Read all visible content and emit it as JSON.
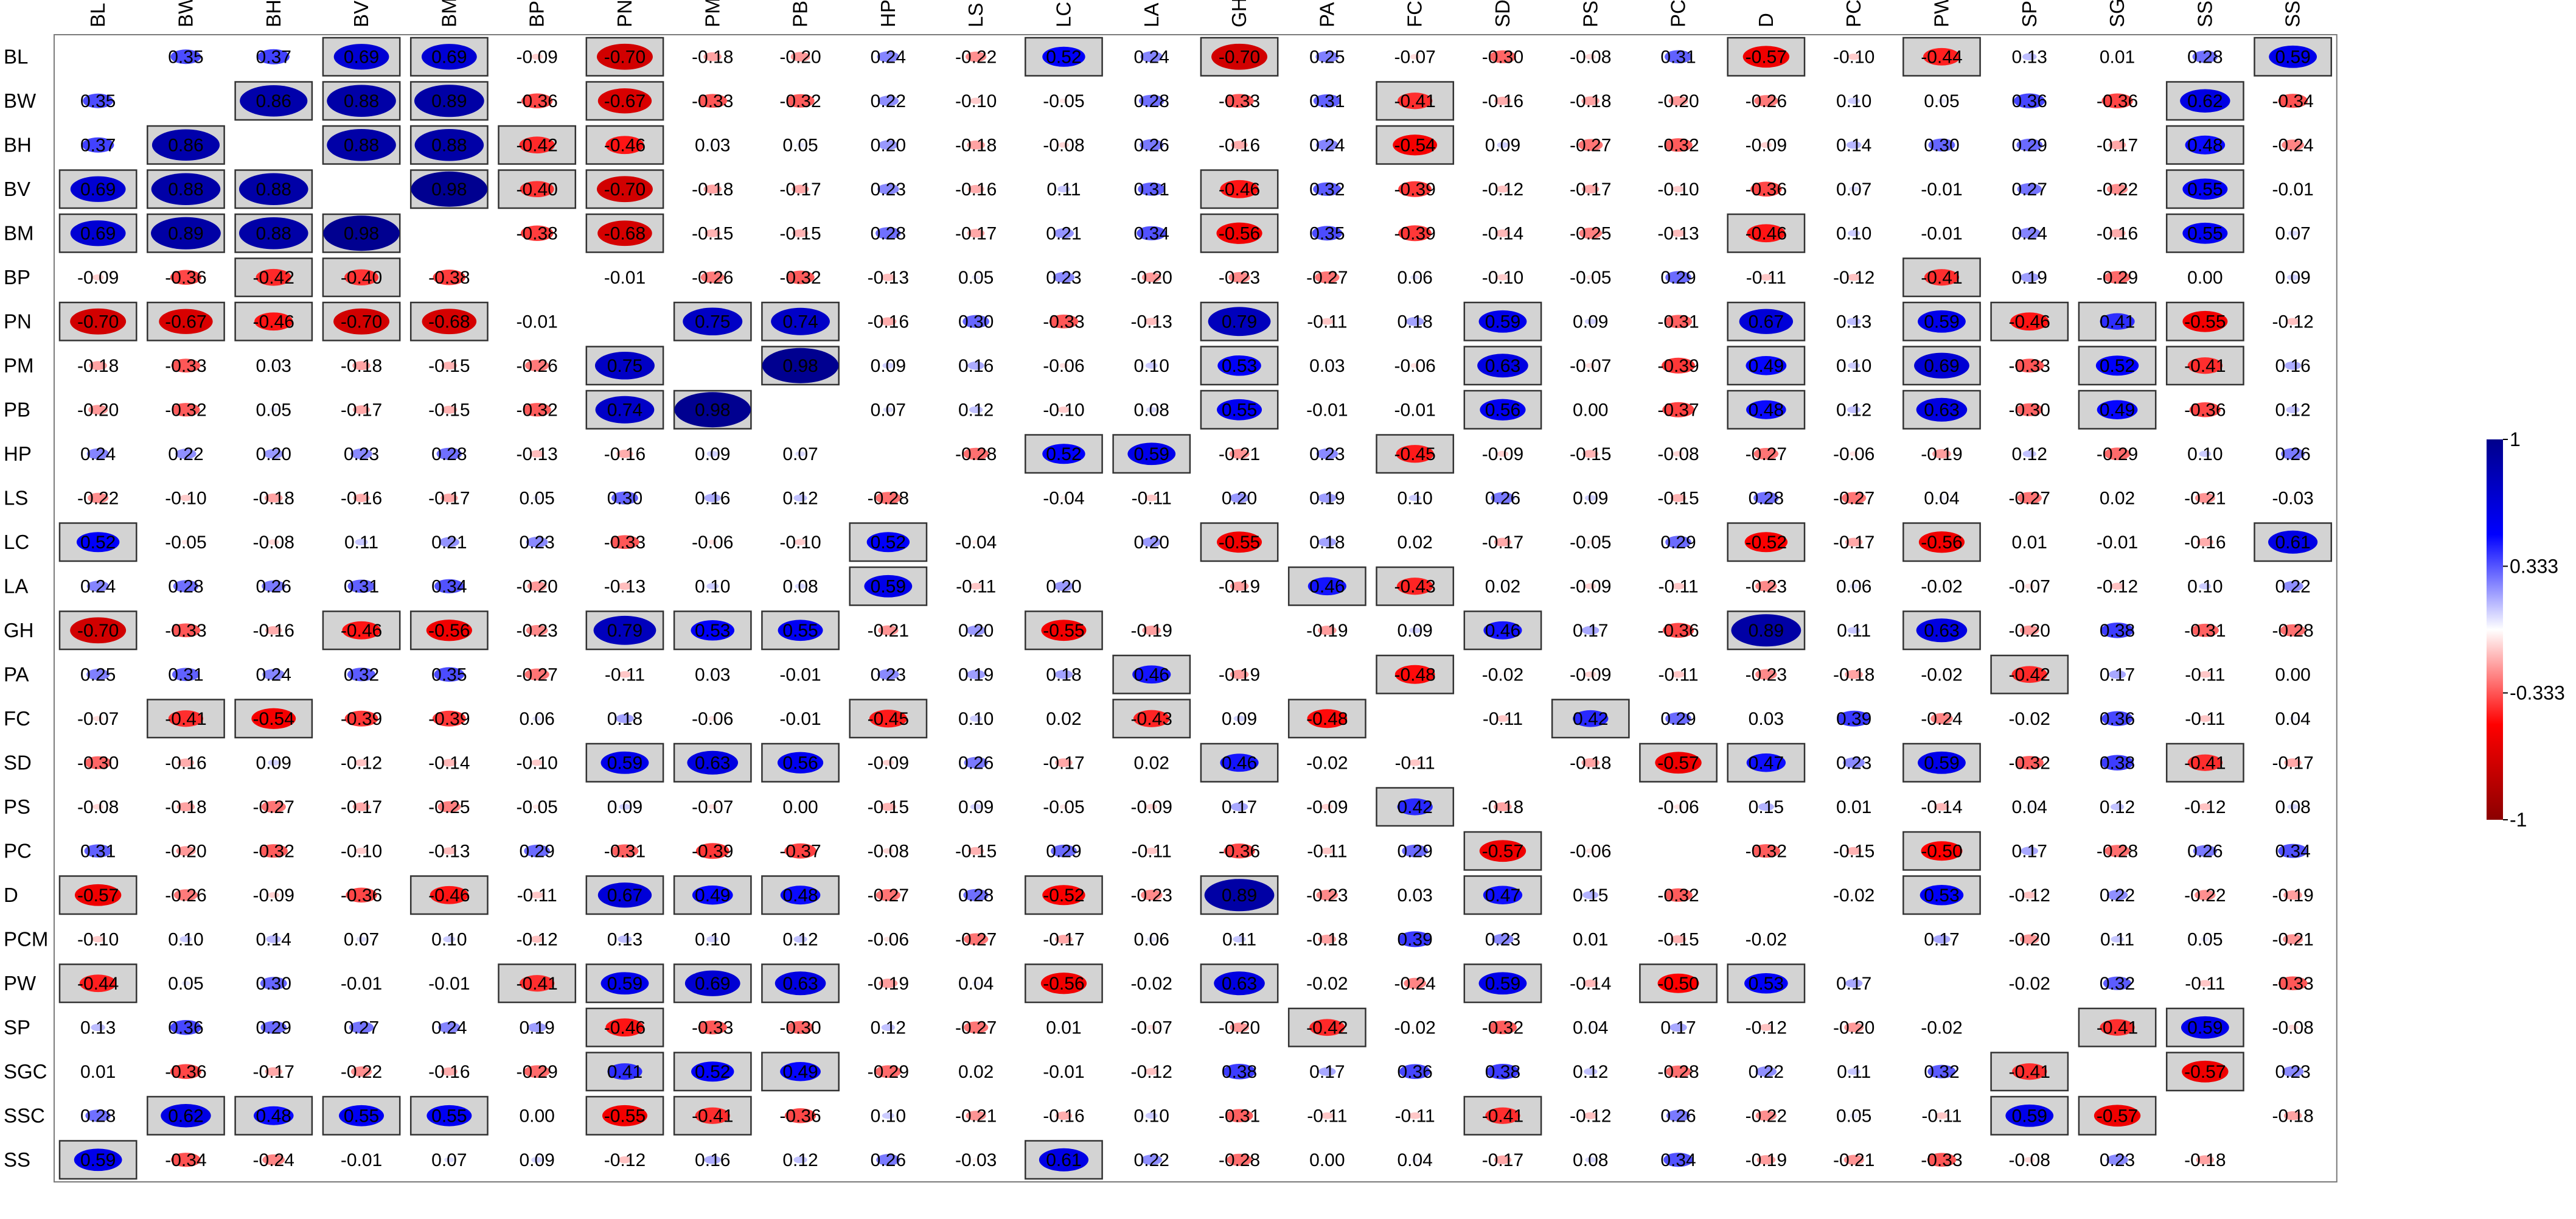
{
  "chart_data": {
    "type": "heatmap",
    "variables": [
      "BL",
      "BW",
      "BH",
      "BV",
      "BM",
      "BP",
      "PN",
      "PM",
      "PB",
      "HP",
      "LS",
      "LC",
      "LA",
      "GH",
      "PA",
      "FC",
      "SD",
      "PS",
      "PC",
      "D",
      "PCM",
      "PW",
      "SP",
      "SGC",
      "SSC",
      "SS"
    ],
    "matrix": [
      [
        null,
        0.35,
        0.37,
        0.69,
        0.69,
        -0.09,
        -0.7,
        -0.18,
        -0.2,
        0.24,
        -0.22,
        0.52,
        0.24,
        -0.7,
        0.25,
        -0.07,
        -0.3,
        -0.08,
        0.31,
        -0.57,
        -0.1,
        -0.44,
        0.13,
        0.01,
        0.28,
        0.59
      ],
      [
        0.35,
        null,
        0.86,
        0.88,
        0.89,
        -0.36,
        -0.67,
        -0.33,
        -0.32,
        0.22,
        -0.1,
        -0.05,
        0.28,
        -0.33,
        0.31,
        -0.41,
        -0.16,
        -0.18,
        -0.2,
        -0.26,
        0.1,
        0.05,
        0.36,
        -0.36,
        0.62,
        -0.34
      ],
      [
        0.37,
        0.86,
        null,
        0.88,
        0.88,
        -0.42,
        -0.46,
        0.03,
        0.05,
        0.2,
        -0.18,
        -0.08,
        0.26,
        -0.16,
        0.24,
        -0.54,
        0.09,
        -0.27,
        -0.32,
        -0.09,
        0.14,
        0.3,
        0.29,
        -0.17,
        0.48,
        -0.24
      ],
      [
        0.69,
        0.88,
        0.88,
        null,
        0.98,
        -0.4,
        -0.7,
        -0.18,
        -0.17,
        0.23,
        -0.16,
        0.11,
        0.31,
        -0.46,
        0.32,
        -0.39,
        -0.12,
        -0.17,
        -0.1,
        -0.36,
        0.07,
        -0.01,
        0.27,
        -0.22,
        0.55,
        -0.01
      ],
      [
        0.69,
        0.89,
        0.88,
        0.98,
        null,
        -0.38,
        -0.68,
        -0.15,
        -0.15,
        0.28,
        -0.17,
        0.21,
        0.34,
        -0.56,
        0.35,
        -0.39,
        -0.14,
        -0.25,
        -0.13,
        -0.46,
        0.1,
        -0.01,
        0.24,
        -0.16,
        0.55,
        0.07
      ],
      [
        -0.09,
        -0.36,
        -0.42,
        -0.4,
        -0.38,
        null,
        -0.01,
        -0.26,
        -0.32,
        -0.13,
        0.05,
        0.23,
        -0.2,
        -0.23,
        -0.27,
        0.06,
        -0.1,
        -0.05,
        0.29,
        -0.11,
        -0.12,
        -0.41,
        0.19,
        -0.29,
        0.0,
        0.09
      ],
      [
        -0.7,
        -0.67,
        -0.46,
        -0.7,
        -0.68,
        -0.01,
        null,
        0.75,
        0.74,
        -0.16,
        0.3,
        -0.33,
        -0.13,
        0.79,
        -0.11,
        0.18,
        0.59,
        0.09,
        -0.31,
        0.67,
        0.13,
        0.59,
        -0.46,
        0.41,
        -0.55,
        -0.12
      ],
      [
        -0.18,
        -0.33,
        0.03,
        -0.18,
        -0.15,
        -0.26,
        0.75,
        null,
        0.98,
        0.09,
        0.16,
        -0.06,
        0.1,
        0.53,
        0.03,
        -0.06,
        0.63,
        -0.07,
        -0.39,
        0.49,
        0.1,
        0.69,
        -0.33,
        0.52,
        -0.41,
        0.16
      ],
      [
        -0.2,
        -0.32,
        0.05,
        -0.17,
        -0.15,
        -0.32,
        0.74,
        0.98,
        null,
        0.07,
        0.12,
        -0.1,
        0.08,
        0.55,
        -0.01,
        -0.01,
        0.56,
        0.0,
        -0.37,
        0.48,
        0.12,
        0.63,
        -0.3,
        0.49,
        -0.36,
        0.12
      ],
      [
        0.24,
        0.22,
        0.2,
        0.23,
        0.28,
        -0.13,
        -0.16,
        0.09,
        0.07,
        null,
        -0.28,
        0.52,
        0.59,
        -0.21,
        0.23,
        -0.45,
        -0.09,
        -0.15,
        -0.08,
        -0.27,
        -0.06,
        -0.19,
        0.12,
        -0.29,
        0.1,
        0.26
      ],
      [
        -0.22,
        -0.1,
        -0.18,
        -0.16,
        -0.17,
        0.05,
        0.3,
        0.16,
        0.12,
        -0.28,
        null,
        -0.04,
        -0.11,
        0.2,
        0.19,
        0.1,
        0.26,
        0.09,
        -0.15,
        0.28,
        -0.27,
        0.04,
        -0.27,
        0.02,
        -0.21,
        -0.03
      ],
      [
        0.52,
        -0.05,
        -0.08,
        0.11,
        0.21,
        0.23,
        -0.33,
        -0.06,
        -0.1,
        0.52,
        -0.04,
        null,
        0.2,
        -0.55,
        0.18,
        0.02,
        -0.17,
        -0.05,
        0.29,
        -0.52,
        -0.17,
        -0.56,
        0.01,
        -0.01,
        -0.16,
        0.61
      ],
      [
        0.24,
        0.28,
        0.26,
        0.31,
        0.34,
        -0.2,
        -0.13,
        0.1,
        0.08,
        0.59,
        -0.11,
        0.2,
        null,
        -0.19,
        0.46,
        -0.43,
        0.02,
        -0.09,
        -0.11,
        -0.23,
        0.06,
        -0.02,
        -0.07,
        -0.12,
        0.1,
        0.22
      ],
      [
        -0.7,
        -0.33,
        -0.16,
        -0.46,
        -0.56,
        -0.23,
        0.79,
        0.53,
        0.55,
        -0.21,
        0.2,
        -0.55,
        -0.19,
        null,
        -0.19,
        0.09,
        0.46,
        0.17,
        -0.36,
        0.89,
        0.11,
        0.63,
        -0.2,
        0.38,
        -0.31,
        -0.28
      ],
      [
        0.25,
        0.31,
        0.24,
        0.32,
        0.35,
        -0.27,
        -0.11,
        0.03,
        -0.01,
        0.23,
        0.19,
        0.18,
        0.46,
        -0.19,
        null,
        -0.48,
        -0.02,
        -0.09,
        -0.11,
        -0.23,
        -0.18,
        -0.02,
        -0.42,
        0.17,
        -0.11,
        0.0
      ],
      [
        -0.07,
        -0.41,
        -0.54,
        -0.39,
        -0.39,
        0.06,
        0.18,
        -0.06,
        -0.01,
        -0.45,
        0.1,
        0.02,
        -0.43,
        0.09,
        -0.48,
        null,
        -0.11,
        0.42,
        0.29,
        0.03,
        0.39,
        -0.24,
        -0.02,
        0.36,
        -0.11,
        0.04
      ],
      [
        -0.3,
        -0.16,
        0.09,
        -0.12,
        -0.14,
        -0.1,
        0.59,
        0.63,
        0.56,
        -0.09,
        0.26,
        -0.17,
        0.02,
        0.46,
        -0.02,
        -0.11,
        null,
        -0.18,
        -0.57,
        0.47,
        0.23,
        0.59,
        -0.32,
        0.38,
        -0.41,
        -0.17
      ],
      [
        -0.08,
        -0.18,
        -0.27,
        -0.17,
        -0.25,
        -0.05,
        0.09,
        -0.07,
        0.0,
        -0.15,
        0.09,
        -0.05,
        -0.09,
        0.17,
        -0.09,
        0.42,
        -0.18,
        null,
        -0.06,
        0.15,
        0.01,
        -0.14,
        0.04,
        0.12,
        -0.12,
        0.08
      ],
      [
        0.31,
        -0.2,
        -0.32,
        -0.1,
        -0.13,
        0.29,
        -0.31,
        -0.39,
        -0.37,
        -0.08,
        -0.15,
        0.29,
        -0.11,
        -0.36,
        -0.11,
        0.29,
        -0.57,
        -0.06,
        null,
        -0.32,
        -0.15,
        -0.5,
        0.17,
        -0.28,
        0.26,
        0.34
      ],
      [
        -0.57,
        -0.26,
        -0.09,
        -0.36,
        -0.46,
        -0.11,
        0.67,
        0.49,
        0.48,
        -0.27,
        0.28,
        -0.52,
        -0.23,
        0.89,
        -0.23,
        0.03,
        0.47,
        0.15,
        -0.32,
        null,
        -0.02,
        0.53,
        -0.12,
        0.22,
        -0.22,
        -0.19
      ],
      [
        -0.1,
        0.1,
        0.14,
        0.07,
        0.1,
        -0.12,
        0.13,
        0.1,
        0.12,
        -0.06,
        -0.27,
        -0.17,
        0.06,
        0.11,
        -0.18,
        0.39,
        0.23,
        0.01,
        -0.15,
        -0.02,
        null,
        0.17,
        -0.2,
        0.11,
        0.05,
        -0.21
      ],
      [
        -0.44,
        0.05,
        0.3,
        -0.01,
        -0.01,
        -0.41,
        0.59,
        0.69,
        0.63,
        -0.19,
        0.04,
        -0.56,
        -0.02,
        0.63,
        -0.02,
        -0.24,
        0.59,
        -0.14,
        -0.5,
        0.53,
        0.17,
        null,
        -0.02,
        0.32,
        -0.11,
        -0.33
      ],
      [
        0.13,
        0.36,
        0.29,
        0.27,
        0.24,
        0.19,
        -0.46,
        -0.33,
        -0.3,
        0.12,
        -0.27,
        0.01,
        -0.07,
        -0.2,
        -0.42,
        -0.02,
        -0.32,
        0.04,
        0.17,
        -0.12,
        -0.2,
        -0.02,
        null,
        -0.41,
        0.59,
        -0.08
      ],
      [
        0.01,
        -0.36,
        -0.17,
        -0.22,
        -0.16,
        -0.29,
        0.41,
        0.52,
        0.49,
        -0.29,
        0.02,
        -0.01,
        -0.12,
        0.38,
        0.17,
        0.36,
        0.38,
        0.12,
        -0.28,
        0.22,
        0.11,
        0.32,
        -0.41,
        null,
        -0.57,
        0.23
      ],
      [
        0.28,
        0.62,
        0.48,
        0.55,
        0.55,
        0.0,
        -0.55,
        -0.41,
        -0.36,
        0.1,
        -0.21,
        -0.16,
        0.1,
        -0.31,
        -0.11,
        -0.11,
        -0.41,
        -0.12,
        0.26,
        -0.22,
        0.05,
        -0.11,
        0.59,
        -0.57,
        null,
        -0.18
      ],
      [
        0.59,
        -0.34,
        -0.24,
        -0.01,
        0.07,
        0.09,
        -0.12,
        0.16,
        0.12,
        0.26,
        -0.03,
        0.61,
        0.22,
        -0.28,
        0.0,
        0.04,
        -0.17,
        0.08,
        0.34,
        -0.19,
        -0.21,
        -0.33,
        -0.08,
        0.23,
        -0.18,
        null
      ]
    ],
    "significance_threshold": 0.4,
    "color_scale": {
      "min": -1,
      "max": 1,
      "tick_labels": [
        "1",
        "0.333",
        "-0.333",
        "-1"
      ],
      "colors": [
        "#8b0000",
        "#ff0000",
        "#ffffff",
        "#0000ff",
        "#00008b"
      ]
    },
    "legend_position": "right",
    "grid": false
  }
}
